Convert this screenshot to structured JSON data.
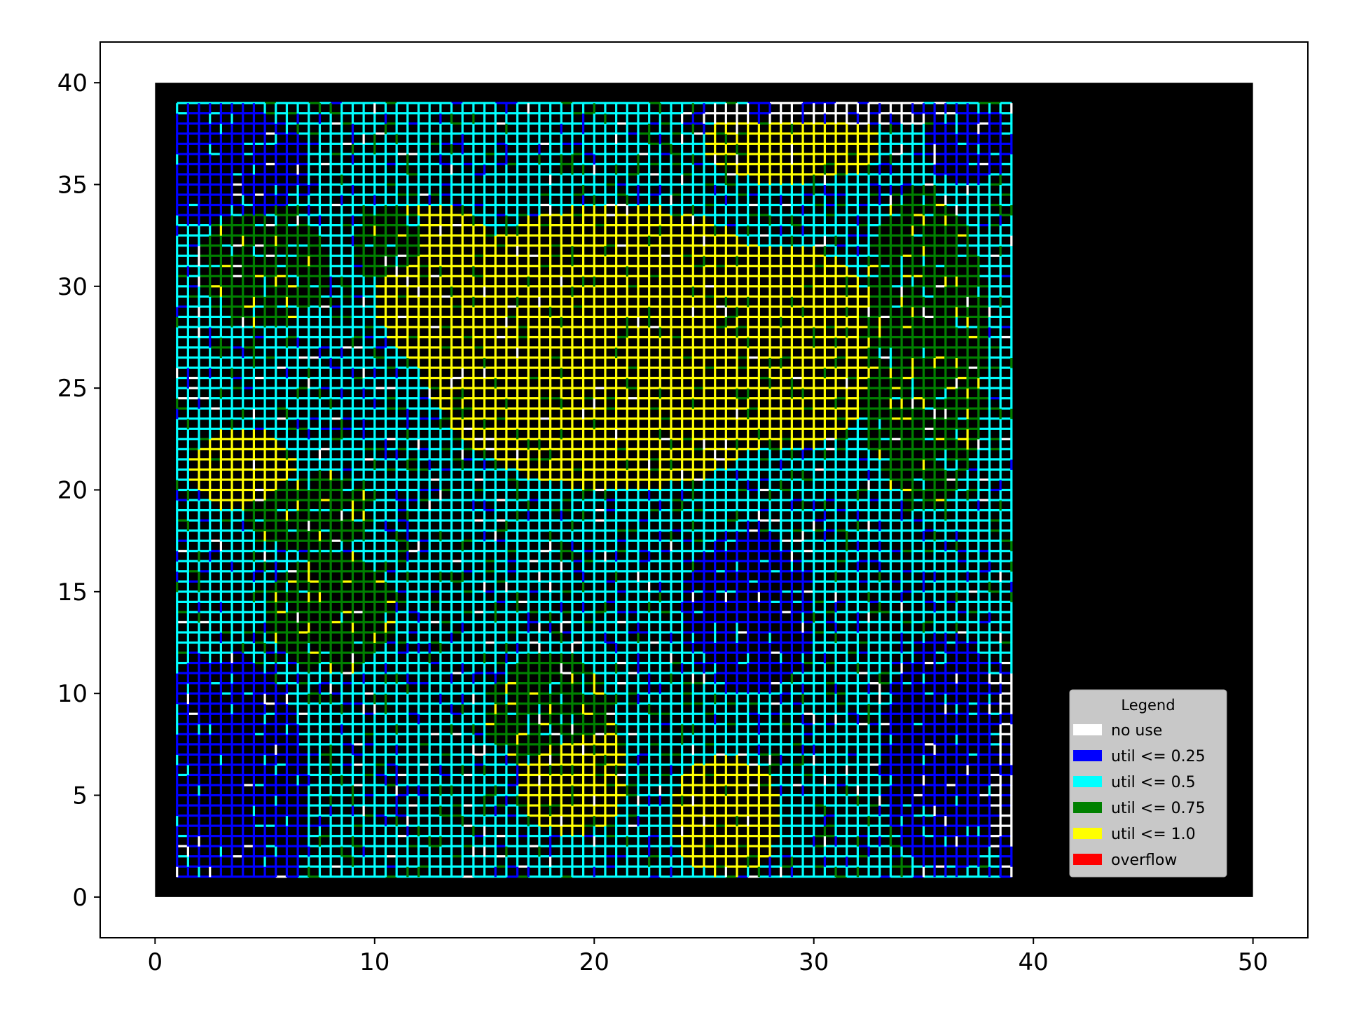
{
  "chart_data": {
    "type": "heatmap",
    "title": "",
    "xlabel": "",
    "ylabel": "",
    "xlim": [
      -2.5,
      52.5
    ],
    "ylim": [
      -2,
      42
    ],
    "xticks": [
      0,
      10,
      20,
      30,
      40,
      50
    ],
    "yticks": [
      0,
      5,
      10,
      15,
      20,
      25,
      30,
      35,
      40
    ],
    "background": {
      "x": [
        0,
        50
      ],
      "y": [
        0,
        40
      ],
      "color": "#000000"
    },
    "grid_extent": {
      "x": [
        1,
        39
      ],
      "y": [
        1,
        39
      ]
    },
    "grid_step": 0.5,
    "legend": {
      "title": "Legend",
      "placement": "lower-right",
      "entries": [
        {
          "label": "no use",
          "color": "#ffffff"
        },
        {
          "label": "util <= 0.25",
          "color": "#0000ff"
        },
        {
          "label": "util <= 0.5",
          "color": "#00ffff"
        },
        {
          "label": "util <= 0.75",
          "color": "#008000"
        },
        {
          "label": "util <= 1.0",
          "color": "#ffff00"
        },
        {
          "label": "overflow",
          "color": "#ff0000"
        }
      ]
    },
    "regions": [
      {
        "level": "util <= 1.0",
        "cx": 21,
        "cy": 27,
        "rx": 9,
        "ry": 7
      },
      {
        "level": "util <= 1.0",
        "cx": 29,
        "cy": 27,
        "rx": 4,
        "ry": 5
      },
      {
        "level": "util <= 1.0",
        "cx": 13,
        "cy": 30,
        "rx": 3,
        "ry": 4
      },
      {
        "level": "util <= 1.0",
        "cx": 19,
        "cy": 6,
        "rx": 2.5,
        "ry": 3
      },
      {
        "level": "util <= 1.0",
        "cx": 26,
        "cy": 4,
        "rx": 2.5,
        "ry": 3
      },
      {
        "level": "util <= 1.0",
        "cx": 29,
        "cy": 37,
        "rx": 4,
        "ry": 2
      },
      {
        "level": "util <= 1.0",
        "cx": 4,
        "cy": 21,
        "rx": 2.5,
        "ry": 2
      },
      {
        "level": "util <= 0.25",
        "cx": 3,
        "cy": 5,
        "rx": 4,
        "ry": 7
      },
      {
        "level": "util <= 0.25",
        "cx": 3,
        "cy": 36,
        "rx": 4,
        "ry": 3
      },
      {
        "level": "util <= 0.25",
        "cx": 36,
        "cy": 7,
        "rx": 3,
        "ry": 6
      },
      {
        "level": "util <= 0.25",
        "cx": 27,
        "cy": 14,
        "rx": 3,
        "ry": 4
      },
      {
        "level": "util <= 0.25",
        "cx": 37,
        "cy": 37,
        "rx": 2,
        "ry": 2
      },
      {
        "level": "util <= 0.75",
        "cx": 8,
        "cy": 14,
        "rx": 3,
        "ry": 3
      },
      {
        "level": "util <= 0.75",
        "cx": 35,
        "cy": 27,
        "rx": 3,
        "ry": 8
      },
      {
        "level": "util <= 0.75",
        "cx": 18,
        "cy": 9,
        "rx": 3,
        "ry": 3
      },
      {
        "level": "util <= 0.75",
        "cx": 5,
        "cy": 31,
        "rx": 3,
        "ry": 3
      },
      {
        "level": "util <= 0.75",
        "cx": 11,
        "cy": 32,
        "rx": 2,
        "ry": 2
      },
      {
        "level": "util <= 0.75",
        "cx": 7,
        "cy": 19,
        "rx": 3,
        "ry": 2
      },
      {
        "level": "no use",
        "cx": 38.7,
        "cy": 6,
        "rx": 0.6,
        "ry": 6
      },
      {
        "level": "no use",
        "cx": 31,
        "cy": 38.5,
        "rx": 7,
        "ry": 0.6
      }
    ]
  }
}
